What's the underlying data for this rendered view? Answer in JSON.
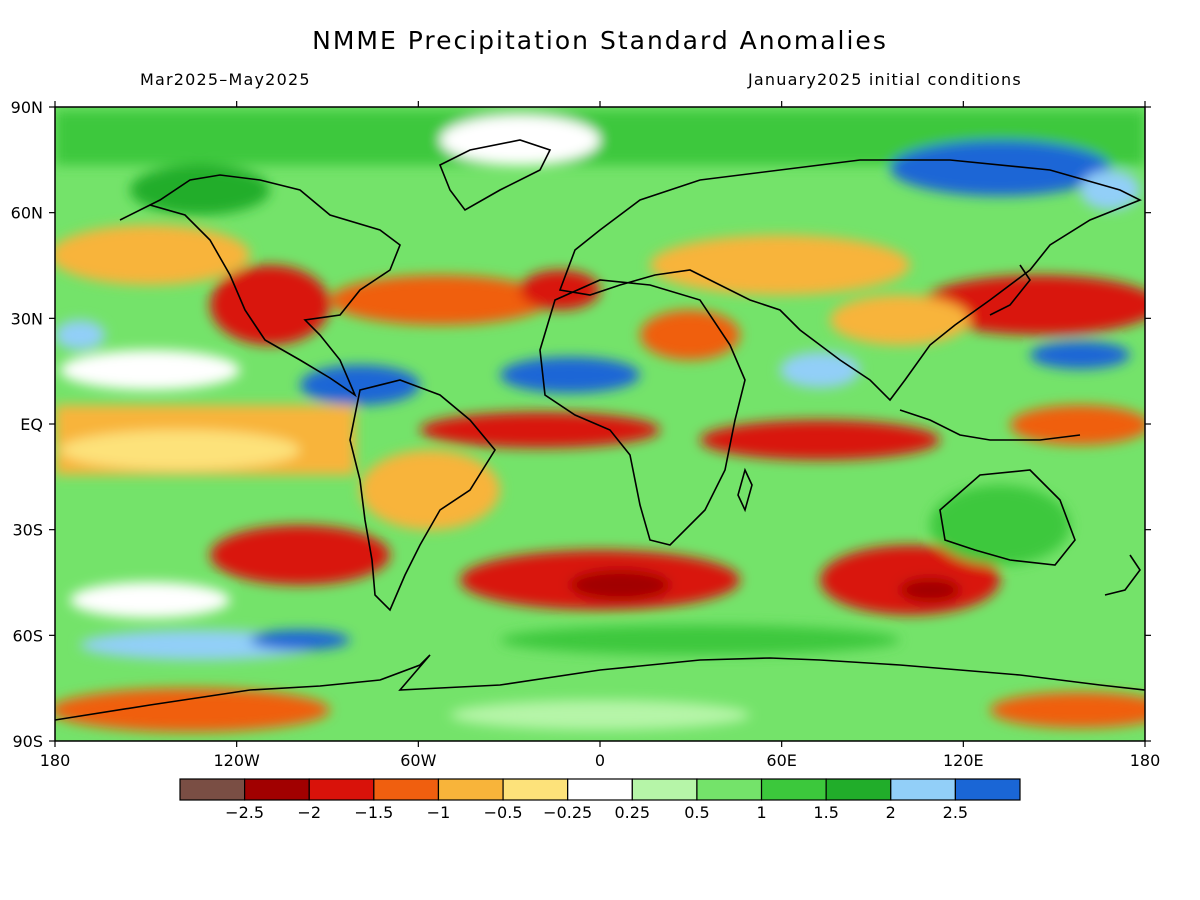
{
  "title": "NMME Precipitation Standard Anomalies",
  "valid_period": "Mar2025–May2025",
  "initial_conditions": "January2025 initial conditions",
  "map": {
    "lat_ticks": [
      "90N",
      "60N",
      "30N",
      "EQ",
      "30S",
      "60S",
      "90S"
    ],
    "lon_ticks": [
      "180",
      "120W",
      "60W",
      "0",
      "60E",
      "120E",
      "180"
    ]
  },
  "colorbar": {
    "colors": [
      "#7a4e44",
      "#a10000",
      "#d9120a",
      "#f05f0f",
      "#f8b43a",
      "#fde27a",
      "#ffffff",
      "#b6f5a8",
      "#74e36a",
      "#3cc83c",
      "#21ad2a",
      "#92cff8",
      "#1a66d6"
    ],
    "tick_labels": [
      "−2.5",
      "−2",
      "−1.5",
      "−1",
      "−0.5",
      "−0.25",
      "0.25",
      "0.5",
      "1",
      "1.5",
      "2",
      "2.5"
    ]
  }
}
